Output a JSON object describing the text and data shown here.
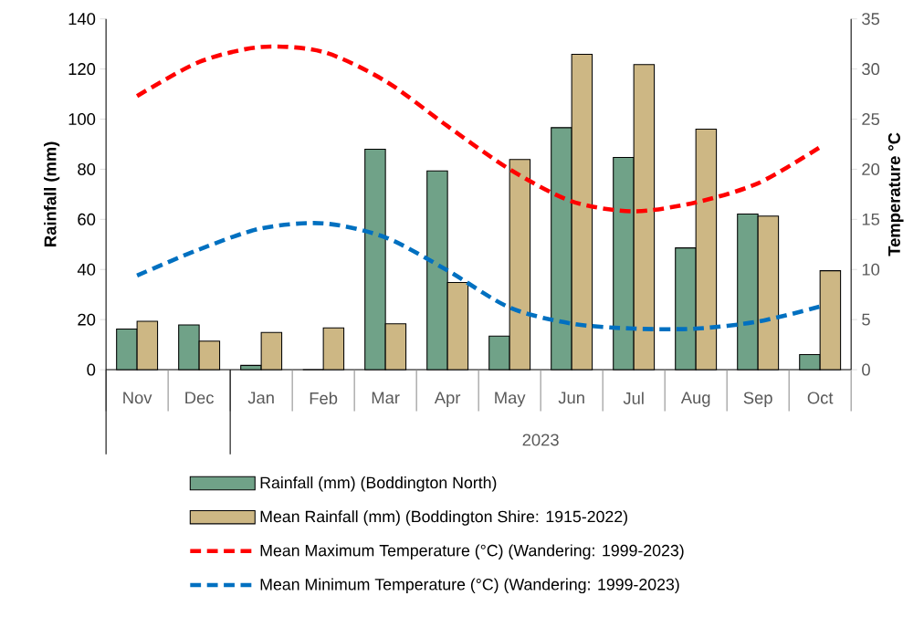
{
  "chart_data": {
    "type": "bar",
    "categories": [
      "Nov",
      "Dec",
      "Jan",
      "Feb",
      "Mar",
      "Apr",
      "May",
      "Jun",
      "Jul",
      "Aug",
      "Sep",
      "Oct"
    ],
    "series": [
      {
        "name": "Rainfall (mm) (Boddington North)",
        "color": "#70a288",
        "values": [
          16.2,
          17.9,
          1.7,
          0,
          88,
          79.3,
          13.4,
          96.6,
          84.7,
          48.6,
          62.1,
          6.0
        ]
      },
      {
        "name": "Mean Rainfall (mm) (Boddington Shire: 1915-2022)",
        "color": "#cdb784",
        "values": [
          19.3,
          11.4,
          14.9,
          16.7,
          18.3,
          34.8,
          83.9,
          125.9,
          121.8,
          96,
          61.3,
          39.5
        ]
      },
      {
        "name": "Mean Maximum Temperature (°C) (Wandering: 1999-2023)",
        "color": "#ff0000",
        "type": "line",
        "axis": "y2",
        "line_style": "dashed",
        "values": [
          27.3,
          30.7,
          32.2,
          31.7,
          28.8,
          24.3,
          20.0,
          16.8,
          15.8,
          16.7,
          18.6,
          22.2
        ]
      },
      {
        "name": "Mean Minimum Temperature (°C) (Wandering: 1999-2023)",
        "color": "#0070c0",
        "type": "line",
        "axis": "y2",
        "line_style": "dashed",
        "values": [
          9.4,
          12.0,
          14.1,
          14.6,
          13.2,
          9.9,
          6.2,
          4.6,
          4.1,
          4.1,
          4.8,
          6.3
        ]
      }
    ],
    "ylabel": "Rainfall (mm)",
    "y2label": "Temperature °C",
    "ylim": [
      0,
      140
    ],
    "yticks": [
      0,
      20,
      40,
      60,
      80,
      100,
      120,
      140
    ],
    "y2lim": [
      0,
      35
    ],
    "y2ticks": [
      0,
      5,
      10,
      15,
      20,
      25,
      30,
      35
    ],
    "annotations": [
      "2023"
    ],
    "legend": "bottom"
  }
}
